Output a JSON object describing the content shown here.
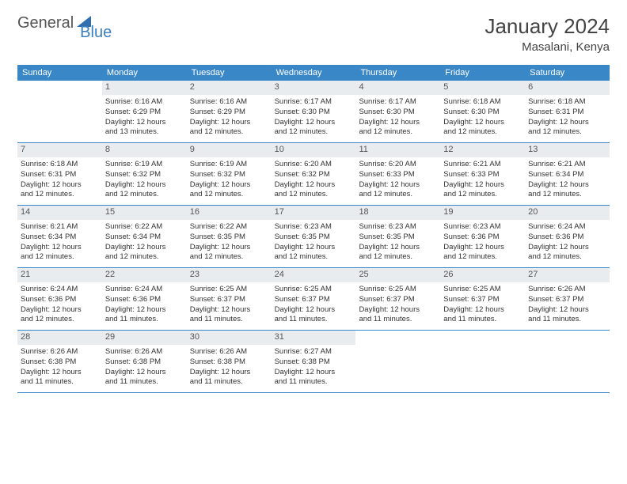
{
  "logo": {
    "general": "General",
    "blue": "Blue",
    "icon_color": "#2f6fb0"
  },
  "title": "January 2024",
  "location": "Masalani, Kenya",
  "colors": {
    "header_bg": "#3a87c8",
    "header_text": "#ffffff",
    "daynum_bg": "#e8ecef",
    "row_border": "#3a87c8",
    "body_text": "#333333"
  },
  "days_of_week": [
    "Sunday",
    "Monday",
    "Tuesday",
    "Wednesday",
    "Thursday",
    "Friday",
    "Saturday"
  ],
  "weeks": [
    [
      null,
      {
        "n": "1",
        "sr": "Sunrise: 6:16 AM",
        "ss": "Sunset: 6:29 PM",
        "d1": "Daylight: 12 hours",
        "d2": "and 13 minutes."
      },
      {
        "n": "2",
        "sr": "Sunrise: 6:16 AM",
        "ss": "Sunset: 6:29 PM",
        "d1": "Daylight: 12 hours",
        "d2": "and 12 minutes."
      },
      {
        "n": "3",
        "sr": "Sunrise: 6:17 AM",
        "ss": "Sunset: 6:30 PM",
        "d1": "Daylight: 12 hours",
        "d2": "and 12 minutes."
      },
      {
        "n": "4",
        "sr": "Sunrise: 6:17 AM",
        "ss": "Sunset: 6:30 PM",
        "d1": "Daylight: 12 hours",
        "d2": "and 12 minutes."
      },
      {
        "n": "5",
        "sr": "Sunrise: 6:18 AM",
        "ss": "Sunset: 6:30 PM",
        "d1": "Daylight: 12 hours",
        "d2": "and 12 minutes."
      },
      {
        "n": "6",
        "sr": "Sunrise: 6:18 AM",
        "ss": "Sunset: 6:31 PM",
        "d1": "Daylight: 12 hours",
        "d2": "and 12 minutes."
      }
    ],
    [
      {
        "n": "7",
        "sr": "Sunrise: 6:18 AM",
        "ss": "Sunset: 6:31 PM",
        "d1": "Daylight: 12 hours",
        "d2": "and 12 minutes."
      },
      {
        "n": "8",
        "sr": "Sunrise: 6:19 AM",
        "ss": "Sunset: 6:32 PM",
        "d1": "Daylight: 12 hours",
        "d2": "and 12 minutes."
      },
      {
        "n": "9",
        "sr": "Sunrise: 6:19 AM",
        "ss": "Sunset: 6:32 PM",
        "d1": "Daylight: 12 hours",
        "d2": "and 12 minutes."
      },
      {
        "n": "10",
        "sr": "Sunrise: 6:20 AM",
        "ss": "Sunset: 6:32 PM",
        "d1": "Daylight: 12 hours",
        "d2": "and 12 minutes."
      },
      {
        "n": "11",
        "sr": "Sunrise: 6:20 AM",
        "ss": "Sunset: 6:33 PM",
        "d1": "Daylight: 12 hours",
        "d2": "and 12 minutes."
      },
      {
        "n": "12",
        "sr": "Sunrise: 6:21 AM",
        "ss": "Sunset: 6:33 PM",
        "d1": "Daylight: 12 hours",
        "d2": "and 12 minutes."
      },
      {
        "n": "13",
        "sr": "Sunrise: 6:21 AM",
        "ss": "Sunset: 6:34 PM",
        "d1": "Daylight: 12 hours",
        "d2": "and 12 minutes."
      }
    ],
    [
      {
        "n": "14",
        "sr": "Sunrise: 6:21 AM",
        "ss": "Sunset: 6:34 PM",
        "d1": "Daylight: 12 hours",
        "d2": "and 12 minutes."
      },
      {
        "n": "15",
        "sr": "Sunrise: 6:22 AM",
        "ss": "Sunset: 6:34 PM",
        "d1": "Daylight: 12 hours",
        "d2": "and 12 minutes."
      },
      {
        "n": "16",
        "sr": "Sunrise: 6:22 AM",
        "ss": "Sunset: 6:35 PM",
        "d1": "Daylight: 12 hours",
        "d2": "and 12 minutes."
      },
      {
        "n": "17",
        "sr": "Sunrise: 6:23 AM",
        "ss": "Sunset: 6:35 PM",
        "d1": "Daylight: 12 hours",
        "d2": "and 12 minutes."
      },
      {
        "n": "18",
        "sr": "Sunrise: 6:23 AM",
        "ss": "Sunset: 6:35 PM",
        "d1": "Daylight: 12 hours",
        "d2": "and 12 minutes."
      },
      {
        "n": "19",
        "sr": "Sunrise: 6:23 AM",
        "ss": "Sunset: 6:36 PM",
        "d1": "Daylight: 12 hours",
        "d2": "and 12 minutes."
      },
      {
        "n": "20",
        "sr": "Sunrise: 6:24 AM",
        "ss": "Sunset: 6:36 PM",
        "d1": "Daylight: 12 hours",
        "d2": "and 12 minutes."
      }
    ],
    [
      {
        "n": "21",
        "sr": "Sunrise: 6:24 AM",
        "ss": "Sunset: 6:36 PM",
        "d1": "Daylight: 12 hours",
        "d2": "and 12 minutes."
      },
      {
        "n": "22",
        "sr": "Sunrise: 6:24 AM",
        "ss": "Sunset: 6:36 PM",
        "d1": "Daylight: 12 hours",
        "d2": "and 11 minutes."
      },
      {
        "n": "23",
        "sr": "Sunrise: 6:25 AM",
        "ss": "Sunset: 6:37 PM",
        "d1": "Daylight: 12 hours",
        "d2": "and 11 minutes."
      },
      {
        "n": "24",
        "sr": "Sunrise: 6:25 AM",
        "ss": "Sunset: 6:37 PM",
        "d1": "Daylight: 12 hours",
        "d2": "and 11 minutes."
      },
      {
        "n": "25",
        "sr": "Sunrise: 6:25 AM",
        "ss": "Sunset: 6:37 PM",
        "d1": "Daylight: 12 hours",
        "d2": "and 11 minutes."
      },
      {
        "n": "26",
        "sr": "Sunrise: 6:25 AM",
        "ss": "Sunset: 6:37 PM",
        "d1": "Daylight: 12 hours",
        "d2": "and 11 minutes."
      },
      {
        "n": "27",
        "sr": "Sunrise: 6:26 AM",
        "ss": "Sunset: 6:37 PM",
        "d1": "Daylight: 12 hours",
        "d2": "and 11 minutes."
      }
    ],
    [
      {
        "n": "28",
        "sr": "Sunrise: 6:26 AM",
        "ss": "Sunset: 6:38 PM",
        "d1": "Daylight: 12 hours",
        "d2": "and 11 minutes."
      },
      {
        "n": "29",
        "sr": "Sunrise: 6:26 AM",
        "ss": "Sunset: 6:38 PM",
        "d1": "Daylight: 12 hours",
        "d2": "and 11 minutes."
      },
      {
        "n": "30",
        "sr": "Sunrise: 6:26 AM",
        "ss": "Sunset: 6:38 PM",
        "d1": "Daylight: 12 hours",
        "d2": "and 11 minutes."
      },
      {
        "n": "31",
        "sr": "Sunrise: 6:27 AM",
        "ss": "Sunset: 6:38 PM",
        "d1": "Daylight: 12 hours",
        "d2": "and 11 minutes."
      },
      null,
      null,
      null
    ]
  ]
}
